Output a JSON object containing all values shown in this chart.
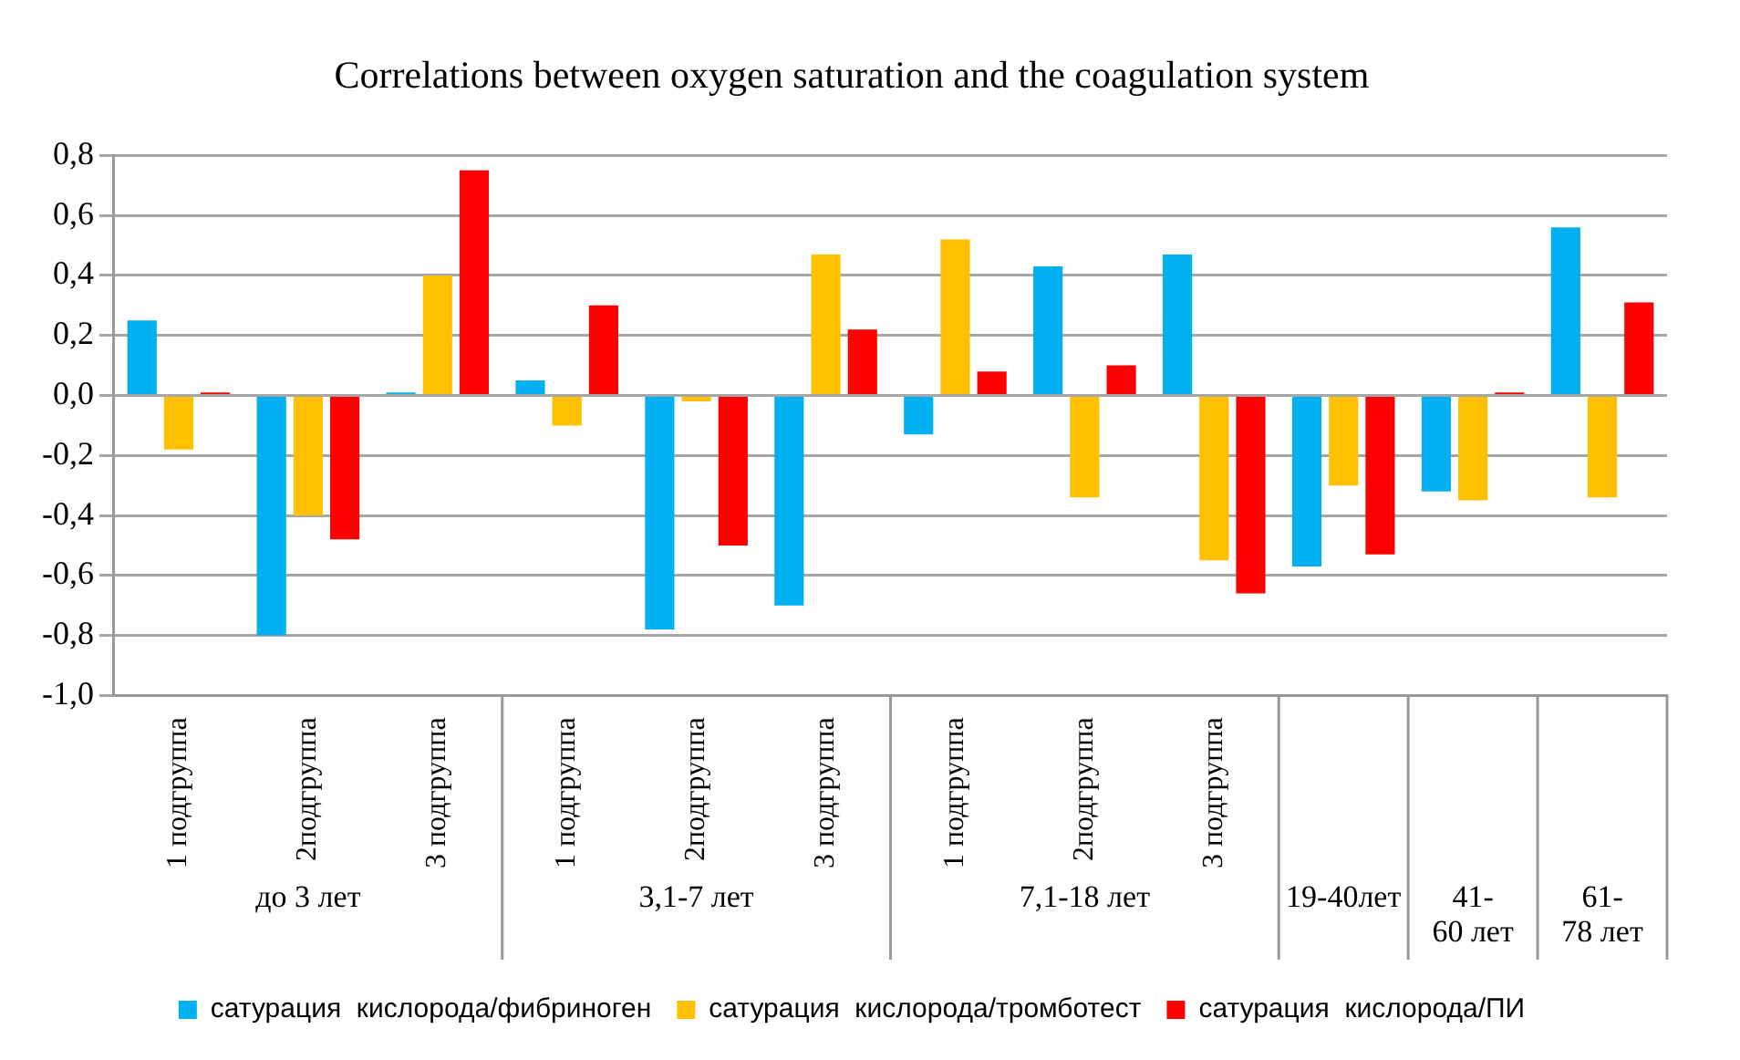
{
  "chart_data": {
    "type": "bar",
    "title": "Correlations between oxygen saturation and the coagulation system",
    "categories": [
      "1 подгруппа",
      "2подгруппа",
      "3 подгруппа",
      "1 подгруппа",
      "2подгруппа",
      "3 подгруппа",
      "1 подгруппа",
      "2подгруппа",
      "3 подгруппа",
      null,
      null,
      null
    ],
    "annotations": [
      "до 3 лет",
      "3,1-7 лет",
      "7,1-18 лет",
      "19-40лет",
      "41-60 лет",
      "61-78 лет"
    ],
    "series": [
      {
        "name": "сатурация  кислорода/фибриноген",
        "color": "#00b0f0",
        "values": [
          0.25,
          -0.8,
          0.01,
          0.05,
          -0.78,
          -0.7,
          -0.13,
          0.43,
          0.47,
          -0.57,
          -0.32,
          0.56
        ]
      },
      {
        "name": "сатурация  кислорода/тромботест",
        "color": "#ffc000",
        "values": [
          -0.18,
          -0.4,
          0.4,
          -0.1,
          -0.02,
          0.47,
          0.52,
          -0.34,
          -0.55,
          -0.3,
          -0.35,
          -0.34
        ]
      },
      {
        "name": "сатурация  кислорода/ПИ",
        "color": "#ff0000",
        "values": [
          0.01,
          -0.48,
          0.75,
          0.3,
          -0.5,
          0.22,
          0.08,
          0.1,
          -0.66,
          -0.53,
          0.01,
          0.31
        ]
      }
    ],
    "ylim": [
      -1.0,
      0.8
    ],
    "yticks": [
      {
        "value": -1.0,
        "label": "-1,0"
      },
      {
        "value": -0.8,
        "label": "-0,8"
      },
      {
        "value": -0.6,
        "label": "-0,6"
      },
      {
        "value": -0.4,
        "label": "-0,4"
      },
      {
        "value": -0.2,
        "label": "-0,2"
      },
      {
        "value": 0,
        "label": "0,0"
      },
      {
        "value": 0.2,
        "label": "0,2"
      },
      {
        "value": 0.4,
        "label": "0,4"
      },
      {
        "value": 0.6,
        "label": "0,6"
      },
      {
        "value": 0.8,
        "label": "0,8"
      }
    ],
    "grid": true,
    "legend": "bottom"
  }
}
